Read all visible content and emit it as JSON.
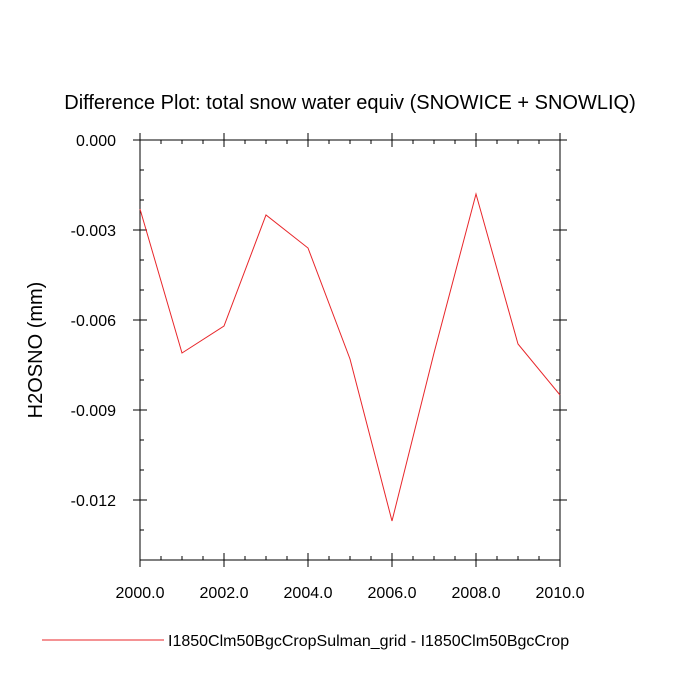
{
  "chart_data": {
    "type": "line",
    "title": "Difference Plot: total snow water equiv (SNOWICE + SNOWLIQ)",
    "xlabel": "",
    "ylabel": "H2OSNO  (mm)",
    "xlim": [
      2000.0,
      2010.0
    ],
    "ylim": [
      -0.014,
      0.0
    ],
    "x_ticks": [
      "2000.0",
      "2002.0",
      "2004.0",
      "2006.0",
      "2008.0",
      "2010.0"
    ],
    "x_tick_values": [
      2000,
      2002,
      2004,
      2006,
      2008,
      2010
    ],
    "y_ticks": [
      "0.000",
      "-0.003",
      "-0.006",
      "-0.009",
      "-0.012"
    ],
    "y_tick_values": [
      0.0,
      -0.003,
      -0.006,
      -0.009,
      -0.012
    ],
    "grid": false,
    "legend_position": "bottom",
    "series": [
      {
        "name": "I1850Clm50BgcCropSulman_grid - I1850Clm50BgcCrop",
        "color": "#e8262a",
        "x": [
          2000,
          2001,
          2002,
          2003,
          2004,
          2005,
          2006,
          2007,
          2008,
          2009,
          2010
        ],
        "y": [
          -0.0023,
          -0.0071,
          -0.0062,
          -0.0025,
          -0.0036,
          -0.0073,
          -0.0127,
          -0.0071,
          -0.0018,
          -0.0068,
          -0.0085
        ]
      }
    ]
  }
}
